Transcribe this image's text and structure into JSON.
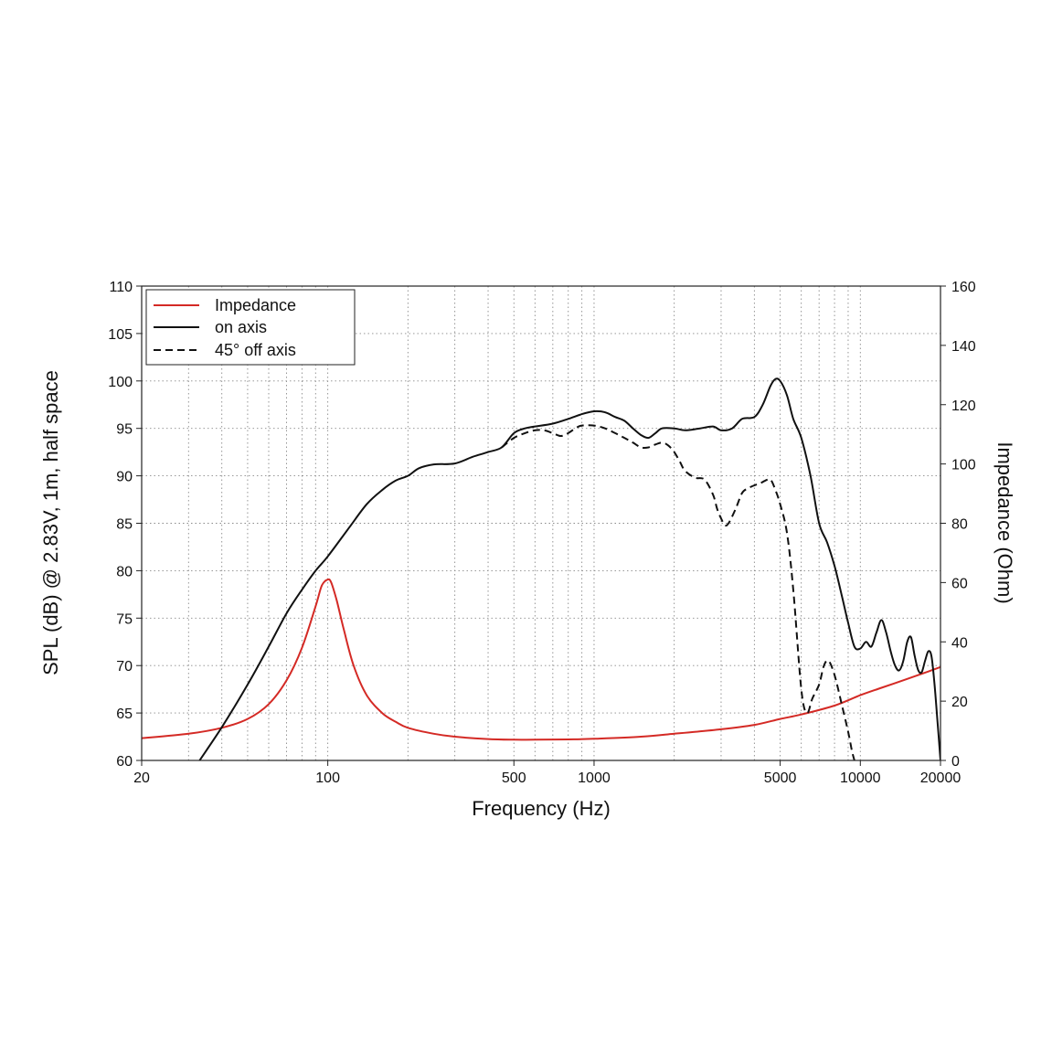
{
  "chart_data": {
    "type": "line",
    "title": "",
    "xlabel": "Frequency (Hz)",
    "ylabel": "SPL (dB) @ 2.83V, 1m, half space",
    "y2label": "Impedance (Ohm)",
    "x_scale": "log",
    "xlim": [
      20,
      20000
    ],
    "ylim": [
      60,
      110
    ],
    "y2lim": [
      0,
      160
    ],
    "grid": true,
    "legend_position": "top-left",
    "x_tick_labels": [
      "20",
      "100",
      "500",
      "1000",
      "5000",
      "10000",
      "20000"
    ],
    "y_tick_labels": [
      "60",
      "65",
      "70",
      "75",
      "80",
      "85",
      "90",
      "95",
      "100",
      "105",
      "110"
    ],
    "y2_tick_labels": [
      "0",
      "20",
      "40",
      "60",
      "80",
      "100",
      "120",
      "140",
      "160"
    ],
    "series": [
      {
        "name": "Impedance",
        "axis": "right",
        "color": "#d42a25",
        "dash": "solid",
        "x": [
          20,
          30,
          40,
          50,
          60,
          70,
          80,
          90,
          95,
          100,
          103,
          108,
          115,
          125,
          140,
          160,
          180,
          200,
          250,
          300,
          400,
          500,
          600,
          800,
          1000,
          1500,
          2000,
          3000,
          4000,
          5000,
          6000,
          8000,
          10000,
          12000,
          15000,
          18000,
          20000
        ],
        "values": [
          7.5,
          9,
          11,
          14,
          19,
          27,
          38,
          52,
          59,
          61,
          60,
          54,
          44,
          32,
          22,
          16,
          13,
          11,
          9,
          8,
          7.2,
          7,
          7,
          7.1,
          7.3,
          8,
          9,
          10.5,
          12,
          14,
          15.5,
          18.5,
          22,
          24.5,
          27.5,
          30,
          31.5
        ]
      },
      {
        "name": "on axis",
        "axis": "left",
        "color": "#111111",
        "dash": "solid",
        "x": [
          33,
          40,
          50,
          60,
          70,
          80,
          90,
          100,
          120,
          140,
          160,
          180,
          200,
          220,
          250,
          300,
          350,
          400,
          450,
          500,
          550,
          600,
          700,
          800,
          900,
          1000,
          1100,
          1200,
          1300,
          1400,
          1500,
          1600,
          1700,
          1800,
          2000,
          2200,
          2500,
          2800,
          3000,
          3300,
          3600,
          4000,
          4300,
          4600,
          4800,
          5000,
          5300,
          5600,
          6000,
          6500,
          7000,
          7500,
          8000,
          8500,
          9000,
          9500,
          10000,
          10500,
          11000,
          11500,
          12000,
          12500,
          13000,
          13500,
          14000,
          14500,
          15000,
          15500,
          16000,
          16500,
          17000,
          17500,
          18000,
          18500,
          19000,
          19500,
          20000
        ],
        "values": [
          60,
          63.5,
          68,
          72,
          75.5,
          78,
          80,
          81.5,
          84.5,
          87,
          88.5,
          89.5,
          90,
          90.8,
          91.2,
          91.3,
          92,
          92.5,
          93,
          94.5,
          95,
          95.2,
          95.5,
          96,
          96.5,
          96.8,
          96.7,
          96.2,
          95.8,
          95,
          94.3,
          94,
          94.5,
          95,
          95,
          94.8,
          95,
          95.2,
          94.8,
          95,
          96,
          96.2,
          97.5,
          99.5,
          100.2,
          100,
          98.5,
          96,
          94,
          90,
          85,
          83,
          80.5,
          77.5,
          74.5,
          72,
          71.8,
          72.5,
          72,
          73.5,
          74.8,
          73.5,
          71.5,
          70,
          69.5,
          70.5,
          72.5,
          73,
          71,
          69.5,
          69.3,
          70.5,
          71.5,
          71,
          68,
          64,
          60
        ]
      },
      {
        "name": "45° off axis",
        "axis": "left",
        "color": "#111111",
        "dash": "dashed",
        "x": [
          450,
          500,
          550,
          600,
          650,
          700,
          750,
          800,
          850,
          900,
          1000,
          1100,
          1200,
          1300,
          1400,
          1500,
          1600,
          1700,
          1800,
          1900,
          2000,
          2100,
          2200,
          2400,
          2600,
          2800,
          2900,
          3000,
          3100,
          3200,
          3400,
          3600,
          3800,
          4000,
          4200,
          4400,
          4600,
          4800,
          5000,
          5300,
          5600,
          6000,
          6300,
          6600,
          7000,
          7300,
          7600,
          8000,
          8500,
          9000,
          9300,
          9500
        ],
        "values": [
          93,
          94,
          94.5,
          94.8,
          94.8,
          94.5,
          94.2,
          94.5,
          95,
          95.3,
          95.3,
          95,
          94.5,
          94,
          93.5,
          93,
          93,
          93.3,
          93.5,
          93.2,
          92.5,
          91.5,
          90.5,
          89.8,
          89.6,
          88,
          86.5,
          85.5,
          84.8,
          85,
          86.5,
          88.2,
          88.7,
          89,
          89.2,
          89.5,
          89.6,
          88.5,
          87,
          84,
          78,
          67.5,
          65,
          66.5,
          68,
          70,
          70.5,
          69,
          66,
          63,
          61,
          60
        ]
      }
    ]
  }
}
